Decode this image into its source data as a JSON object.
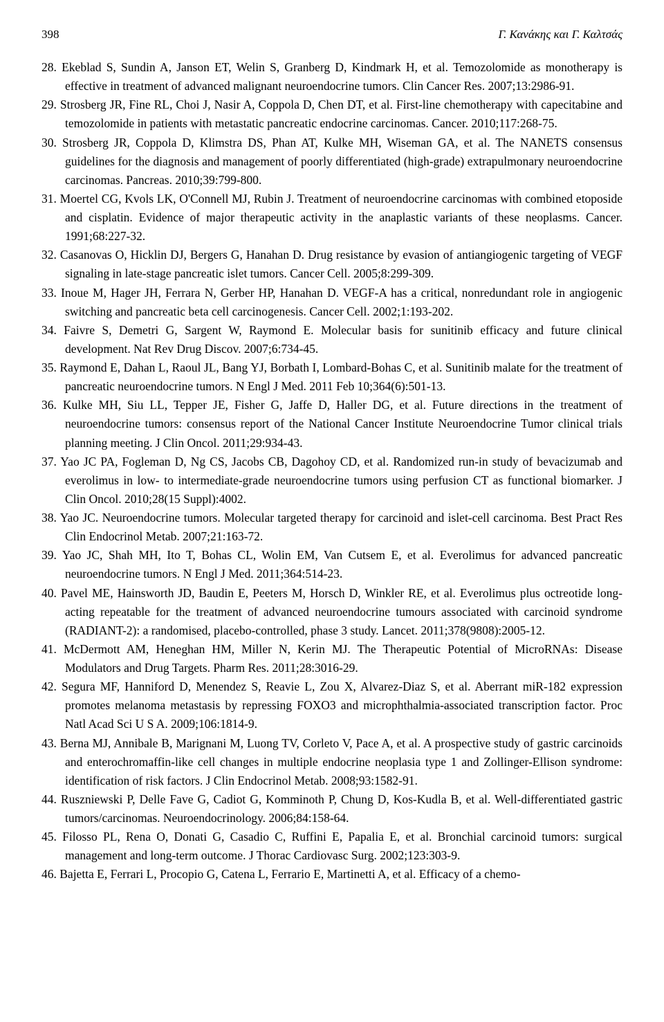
{
  "header": {
    "page_number": "398",
    "running_title": "Γ. Κανάκης και Γ. Καλτσάς"
  },
  "references": [
    {
      "num": "28.",
      "text": "Ekeblad S, Sundin A, Janson ET, Welin S, Granberg D, Kindmark H, et al. Temozolomide as monotherapy is effective in treatment of advanced malignant neuroendocrine tumors. Clin Cancer Res. 2007;13:2986-91."
    },
    {
      "num": "29.",
      "text": "Strosberg JR, Fine RL, Choi J, Nasir A, Coppola D, Chen DT, et al. First-line chemotherapy with capecitabine and temozolomide in patients with metastatic pancreatic endocrine carcinomas. Cancer. 2010;117:268-75."
    },
    {
      "num": "30.",
      "text": "Strosberg JR, Coppola D, Klimstra DS, Phan AT, Kulke MH, Wiseman GA, et al. The NANETS consensus guidelines for the diagnosis and management of poorly differentiated (high-grade) extrapulmonary neuroendocrine carcinomas. Pancreas. 2010;39:799-800."
    },
    {
      "num": "31.",
      "text": "Moertel CG, Kvols LK, O'Connell MJ, Rubin J. Treatment of neuroendocrine carcinomas with combined etoposide and cisplatin. Evidence of major therapeutic activity in the anaplastic variants of these neoplasms. Cancer. 1991;68:227-32."
    },
    {
      "num": "32.",
      "text": "Casanovas O, Hicklin DJ, Bergers G, Hanahan D. Drug resistance by evasion of antiangiogenic targeting of VEGF signaling in late-stage pancreatic islet tumors. Cancer Cell. 2005;8:299-309."
    },
    {
      "num": "33.",
      "text": "Inoue M, Hager JH, Ferrara N, Gerber HP, Hanahan D. VEGF-A has a critical, nonredundant role in angiogenic switching and pancreatic beta cell carcinogenesis. Cancer Cell. 2002;1:193-202."
    },
    {
      "num": "34.",
      "text": "Faivre S, Demetri G, Sargent W, Raymond E. Molecular basis for sunitinib efficacy and future clinical development. Nat Rev Drug Discov. 2007;6:734-45."
    },
    {
      "num": "35.",
      "text": "Raymond E, Dahan L, Raoul JL, Bang YJ, Borbath I, Lombard-Bohas C, et al. Sunitinib malate for the treatment of pancreatic neuroendocrine tumors. N Engl J Med. 2011 Feb 10;364(6):501-13."
    },
    {
      "num": "36.",
      "text": "Kulke MH, Siu LL, Tepper JE, Fisher G, Jaffe D, Haller DG, et al. Future directions in the treatment of neuroendocrine tumors: consensus report of the National Cancer Institute Neuroendocrine Tumor clinical trials planning meeting. J Clin Oncol. 2011;29:934-43."
    },
    {
      "num": "37.",
      "text": "Yao JC PA, Fogleman D, Ng CS, Jacobs CB, Dagohoy CD, et al. Randomized run-in study of bevacizumab and everolimus in low- to intermediate-grade neuroendocrine tumors using perfusion CT as functional biomarker. J Clin Oncol. 2010;28(15 Suppl):4002."
    },
    {
      "num": "38.",
      "text": "Yao JC. Neuroendocrine tumors. Molecular targeted therapy for carcinoid and islet-cell carcinoma. Best Pract Res Clin Endocrinol Metab. 2007;21:163-72."
    },
    {
      "num": "39.",
      "text": "Yao JC, Shah MH, Ito T, Bohas CL, Wolin EM, Van Cutsem E, et al. Everolimus for advanced pancreatic neuroendocrine tumors. N Engl J Med. 2011;364:514-23."
    },
    {
      "num": "40.",
      "text": "Pavel ME, Hainsworth JD, Baudin E, Peeters M, Horsch D, Winkler RE, et al. Everolimus plus octreotide long-acting repeatable for the treatment of advanced neuroendocrine tumours associated with carcinoid syndrome (RADIANT-2): a randomised, placebo-controlled, phase 3 study. Lancet. 2011;378(9808):2005-12."
    },
    {
      "num": "41.",
      "text": "McDermott AM, Heneghan HM, Miller N, Kerin MJ. The Therapeutic Potential of MicroRNAs: Disease Modulators and Drug Targets. Pharm Res. 2011;28:3016-29."
    },
    {
      "num": "42.",
      "text": "Segura MF, Hanniford D, Menendez S, Reavie L, Zou X, Alvarez-Diaz S, et al. Aberrant miR-182 expression promotes melanoma metastasis by repressing FOXO3 and microphthalmia-associated transcription factor. Proc Natl Acad Sci U S A. 2009;106:1814-9."
    },
    {
      "num": "43.",
      "text": "Berna MJ, Annibale B, Marignani M, Luong TV, Corleto V, Pace A, et al. A prospective study of gastric carcinoids and enterochromaffin-like cell changes in multiple endocrine neoplasia type 1 and Zollinger-Ellison syndrome: identification of risk factors. J Clin Endocrinol Metab. 2008;93:1582-91."
    },
    {
      "num": "44.",
      "text": "Ruszniewski P, Delle Fave G, Cadiot G, Komminoth P, Chung D, Kos-Kudla B, et al. Well-differentiated gastric tumors/carcinomas. Neuroendocrinology. 2006;84:158-64."
    },
    {
      "num": "45.",
      "text": "Filosso PL, Rena O, Donati G, Casadio C, Ruffini E, Papalia E, et al. Bronchial carcinoid tumors: surgical management and long-term outcome. J Thorac Cardiovasc Surg. 2002;123:303-9."
    },
    {
      "num": "46.",
      "text": "Bajetta E, Ferrari L, Procopio G, Catena L, Ferrario E, Martinetti A, et al. Efficacy of a chemo-"
    }
  ]
}
